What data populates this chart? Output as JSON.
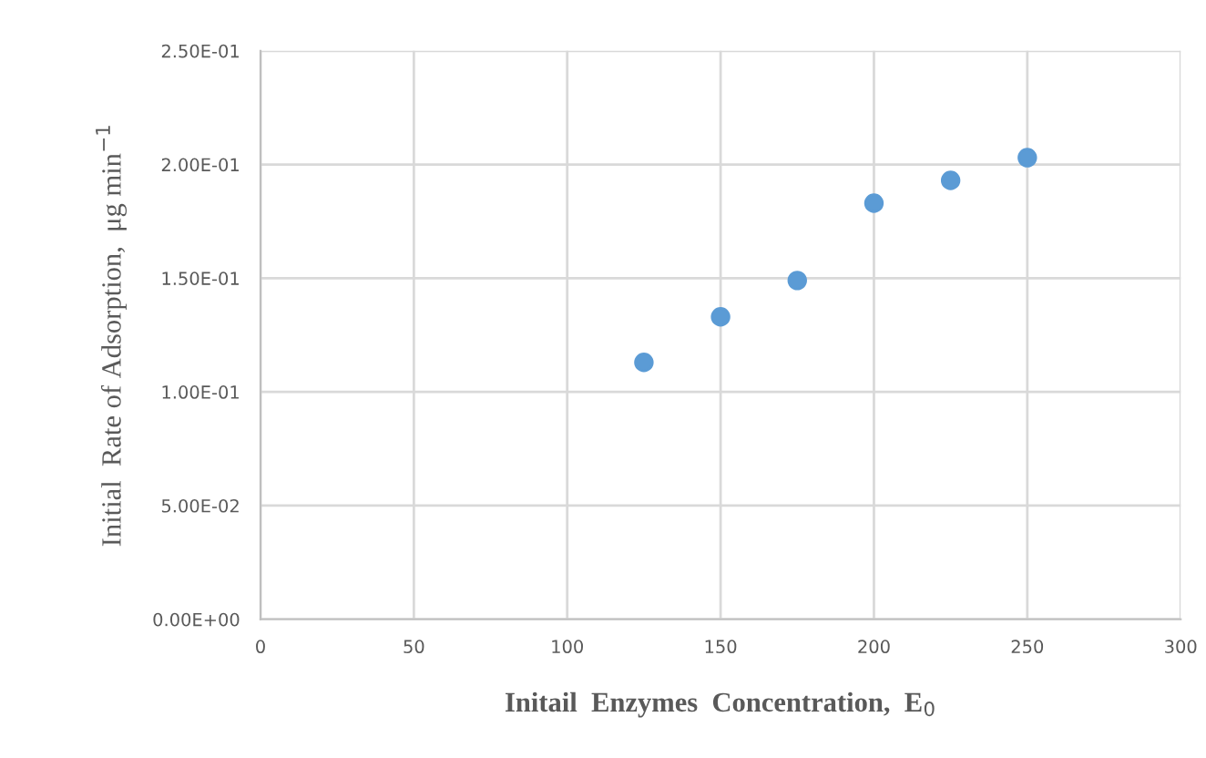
{
  "chart_data": {
    "type": "scatter",
    "xlabel": "Initail  Enzymes  Concentration,  E$_{0}$",
    "ylabel": "Initial  Rate of Adsorption,  μg min$^{−1}$",
    "x": [
      125,
      150,
      175,
      200,
      225,
      250
    ],
    "series": [
      {
        "color": "#5b9bd5",
        "values": [
          0.113,
          0.133,
          0.149,
          0.183,
          0.193,
          0.203
        ]
      }
    ],
    "xlim": [
      0,
      300
    ],
    "xticks": [
      0,
      50,
      100,
      150,
      200,
      250,
      300
    ],
    "ylim": [
      0,
      0.25
    ],
    "yticks": [
      {
        "value": 0,
        "label": "0.00E+00"
      },
      {
        "value": 0.05,
        "label": "5.00E-02"
      },
      {
        "value": 0.1,
        "label": "1.00E-01"
      },
      {
        "value": 0.15,
        "label": "1.50E-01"
      },
      {
        "value": 0.2,
        "label": "2.00E-01"
      },
      {
        "value": 0.25,
        "label": "2.50E-01"
      }
    ],
    "grid": true,
    "marker": "circle"
  }
}
